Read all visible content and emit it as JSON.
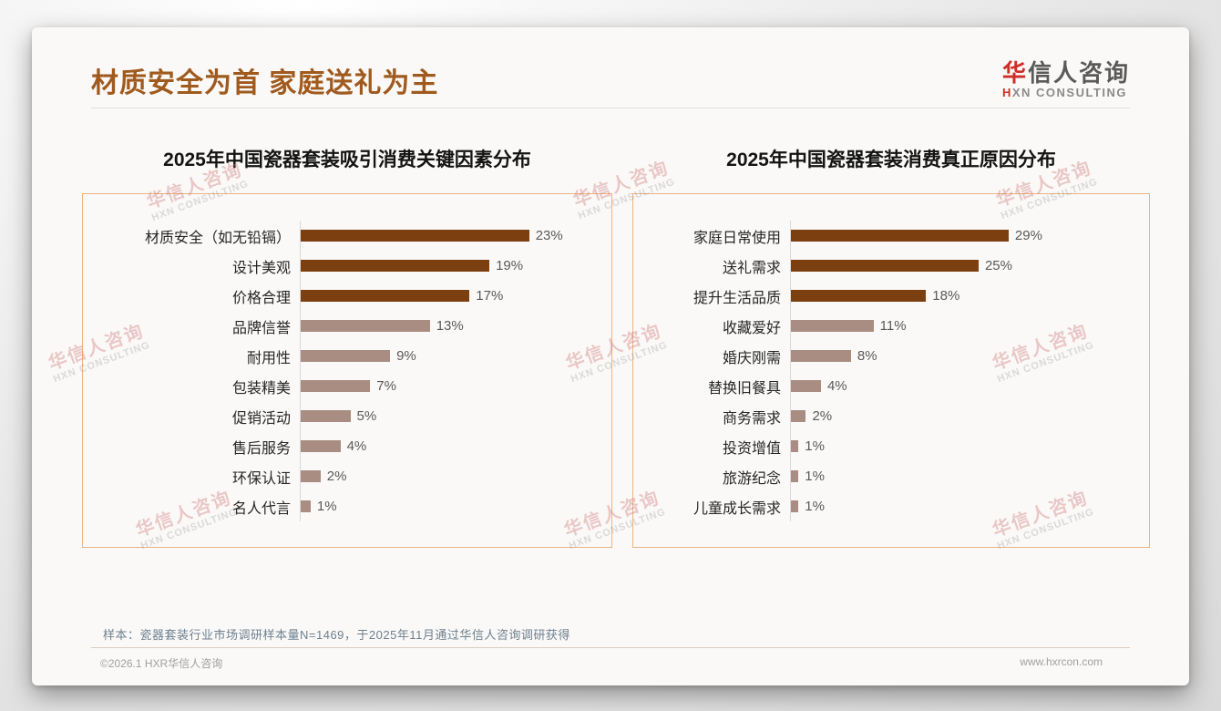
{
  "header": {
    "title": "材质安全为首 家庭送礼为主"
  },
  "logo": {
    "cn_first": "华",
    "cn_rest": "信人咨询",
    "en_first": "H",
    "en_rest": "XN CONSULTING"
  },
  "watermark": {
    "line1": "华信人咨询",
    "line2": "HXN CONSULTING"
  },
  "colors": {
    "bar_dark": "#7c3f10",
    "bar_light": "#a98d82",
    "title_brown": "#a05a1e",
    "box_border": "#e9b484",
    "brand_red": "#cf2e26",
    "note_blue_gray": "#6e8090"
  },
  "chart_data": [
    {
      "type": "bar",
      "orientation": "horizontal",
      "title": "2025年中国瓷器套装吸引消费关键因素分布",
      "categories": [
        "材质安全（如无铅镉）",
        "设计美观",
        "价格合理",
        "品牌信誉",
        "耐用性",
        "包装精美",
        "促销活动",
        "售后服务",
        "环保认证",
        "名人代言"
      ],
      "values": [
        23,
        19,
        17,
        13,
        9,
        7,
        5,
        4,
        2,
        1
      ],
      "unit": "%",
      "highlight_count": 3,
      "xlim": [
        0,
        30
      ],
      "grid": false,
      "value_labels": true
    },
    {
      "type": "bar",
      "orientation": "horizontal",
      "title": "2025年中国瓷器套装消费真正原因分布",
      "categories": [
        "家庭日常使用",
        "送礼需求",
        "提升生活品质",
        "收藏爱好",
        "婚庆刚需",
        "替换旧餐具",
        "商务需求",
        "投资增值",
        "旅游纪念",
        "儿童成长需求"
      ],
      "values": [
        29,
        25,
        18,
        11,
        8,
        4,
        2,
        1,
        1,
        1
      ],
      "unit": "%",
      "highlight_count": 3,
      "xlim": [
        0,
        46
      ],
      "grid": false,
      "value_labels": true
    }
  ],
  "footnote": "样本：瓷器套装行业市场调研样本量N=1469，于2025年11月通过华信人咨询调研获得",
  "footer": {
    "copyright": "©2026.1 HXR华信人咨询",
    "website": "www.hxrcon.com"
  }
}
